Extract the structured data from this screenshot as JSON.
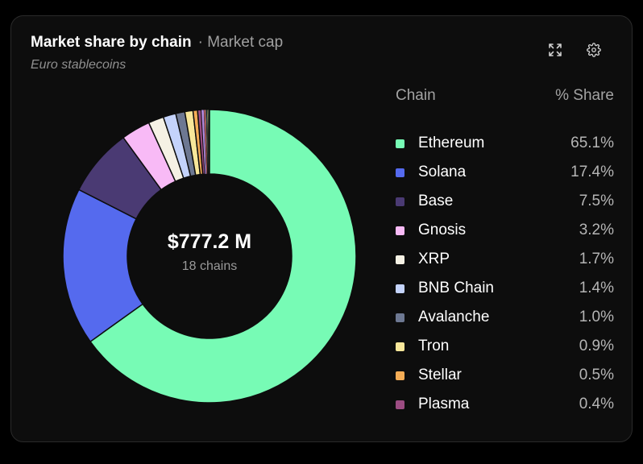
{
  "header": {
    "title": "Market share by chain",
    "subtitle": "· Market cap",
    "caption": "Euro stablecoins"
  },
  "toolbar": {
    "expand_icon": "expand-icon",
    "settings_icon": "gear-icon"
  },
  "legend": {
    "col_chain": "Chain",
    "col_share": "% Share"
  },
  "center": {
    "total": "$777.2 M",
    "count": "18 chains"
  },
  "chart_data": {
    "type": "pie",
    "series": [
      {
        "name": "Market cap",
        "values": [
          {
            "label": "Ethereum",
            "value": 65.1,
            "display": "65.1%",
            "color": "#77fbb5",
            "legend": true
          },
          {
            "label": "Solana",
            "value": 17.4,
            "display": "17.4%",
            "color": "#556aee",
            "legend": true
          },
          {
            "label": "Base",
            "value": 7.5,
            "display": "7.5%",
            "color": "#4a3a73",
            "legend": true
          },
          {
            "label": "Gnosis",
            "value": 3.2,
            "display": "3.2%",
            "color": "#f8baf6",
            "legend": true
          },
          {
            "label": "XRP",
            "value": 1.7,
            "display": "1.7%",
            "color": "#f5f1e4",
            "legend": true
          },
          {
            "label": "BNB Chain",
            "value": 1.4,
            "display": "1.4%",
            "color": "#c4d3fb",
            "legend": true
          },
          {
            "label": "Avalanche",
            "value": 1.0,
            "display": "1.0%",
            "color": "#6d7892",
            "legend": true
          },
          {
            "label": "Tron",
            "value": 0.9,
            "display": "0.9%",
            "color": "#f8e79a",
            "legend": true
          },
          {
            "label": "Stellar",
            "value": 0.5,
            "display": "0.5%",
            "color": "#f4ac55",
            "legend": true
          },
          {
            "label": "Plasma",
            "value": 0.4,
            "display": "0.4%",
            "color": "#9c4c82",
            "legend": true
          },
          {
            "value": 0.3,
            "color": "#b48be0",
            "legend": false
          },
          {
            "value": 0.2,
            "color": "#e07878",
            "legend": false
          },
          {
            "value": 0.1,
            "color": "#5fb0c8",
            "legend": false
          },
          {
            "value": 0.1,
            "color": "#d9d98a",
            "legend": false
          },
          {
            "value": 0.1,
            "color": "#8fc98f",
            "legend": false
          },
          {
            "value": 0.05,
            "color": "#c88f5f",
            "legend": false
          },
          {
            "value": 0.03,
            "color": "#7f7fe0",
            "legend": false
          },
          {
            "value": 0.02,
            "color": "#e0a0c8",
            "legend": false
          }
        ]
      }
    ],
    "legend_placement": "right",
    "inner_label": "$777.2 M"
  }
}
